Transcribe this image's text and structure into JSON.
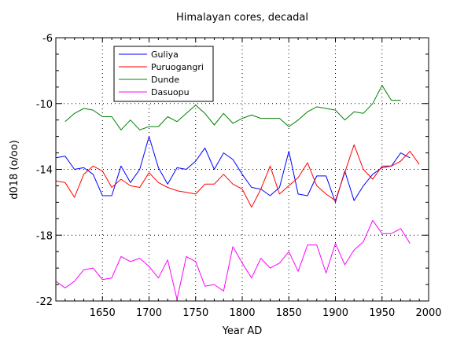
{
  "chart_data": {
    "type": "line",
    "title": "Himalayan cores, decadal",
    "xlabel": "Year AD",
    "ylabel": "d018 (o/oo)",
    "xlim": [
      1600,
      2000
    ],
    "ylim": [
      -22,
      -6
    ],
    "xticks": [
      1650,
      1700,
      1750,
      1800,
      1850,
      1900,
      1950,
      2000
    ],
    "yticks": [
      -22,
      -18,
      -14,
      -10,
      -6
    ],
    "grid": true,
    "legend_position": "top-left",
    "series": [
      {
        "name": "Guliya",
        "color": "#0000ff",
        "x": [
          1600,
          1610,
          1620,
          1630,
          1640,
          1650,
          1660,
          1670,
          1680,
          1690,
          1700,
          1710,
          1720,
          1730,
          1740,
          1750,
          1760,
          1770,
          1780,
          1790,
          1800,
          1810,
          1820,
          1830,
          1840,
          1850,
          1860,
          1870,
          1880,
          1890,
          1900,
          1910,
          1920,
          1930,
          1940,
          1950,
          1960,
          1970,
          1980
        ],
        "y": [
          -13.3,
          -13.2,
          -14.0,
          -13.9,
          -14.3,
          -15.6,
          -15.6,
          -13.8,
          -14.8,
          -14.0,
          -12.0,
          -13.9,
          -14.9,
          -13.9,
          -14.0,
          -13.5,
          -12.7,
          -14.0,
          -13.0,
          -13.4,
          -14.3,
          -15.1,
          -15.2,
          -15.6,
          -15.1,
          -12.9,
          -15.5,
          -15.6,
          -14.4,
          -14.4,
          -16.0,
          -14.1,
          -15.9,
          -15.0,
          -14.3,
          -13.9,
          -13.8,
          -13.0,
          -13.3
        ]
      },
      {
        "name": "Puruogangri",
        "color": "#ff0000",
        "x": [
          1600,
          1610,
          1620,
          1630,
          1640,
          1650,
          1660,
          1670,
          1680,
          1690,
          1700,
          1710,
          1720,
          1730,
          1740,
          1750,
          1760,
          1770,
          1780,
          1790,
          1800,
          1810,
          1820,
          1830,
          1840,
          1850,
          1860,
          1870,
          1880,
          1890,
          1900,
          1910,
          1920,
          1930,
          1940,
          1950,
          1960,
          1970,
          1980,
          1990
        ],
        "y": [
          -14.7,
          -14.8,
          -15.7,
          -14.3,
          -13.8,
          -14.1,
          -15.1,
          -14.6,
          -15.0,
          -15.1,
          -14.2,
          -14.8,
          -15.1,
          -15.3,
          -15.4,
          -15.5,
          -14.9,
          -14.9,
          -14.3,
          -14.9,
          -15.2,
          -16.3,
          -15.2,
          -13.8,
          -15.5,
          -15.0,
          -14.5,
          -13.6,
          -15.0,
          -15.5,
          -15.9,
          -14.2,
          -12.5,
          -14.0,
          -14.6,
          -13.8,
          -13.8,
          -13.5,
          -12.9,
          -13.7
        ]
      },
      {
        "name": "Dunde",
        "color": "#008000",
        "x": [
          1610,
          1620,
          1630,
          1640,
          1650,
          1660,
          1670,
          1680,
          1690,
          1700,
          1710,
          1720,
          1730,
          1740,
          1750,
          1760,
          1770,
          1780,
          1790,
          1800,
          1810,
          1820,
          1830,
          1840,
          1850,
          1860,
          1870,
          1880,
          1890,
          1900,
          1910,
          1920,
          1930,
          1940,
          1950,
          1960,
          1970
        ],
        "y": [
          -11.1,
          -10.6,
          -10.3,
          -10.4,
          -10.8,
          -10.8,
          -11.6,
          -11.0,
          -11.6,
          -11.4,
          -11.4,
          -10.8,
          -11.1,
          -10.6,
          -10.1,
          -10.6,
          -11.3,
          -10.6,
          -11.2,
          -10.9,
          -10.7,
          -10.9,
          -10.9,
          -10.9,
          -11.4,
          -11.0,
          -10.5,
          -10.2,
          -10.3,
          -10.4,
          -11.0,
          -10.5,
          -10.6,
          -10.0,
          -8.9,
          -9.8,
          -9.8
        ]
      },
      {
        "name": "Dasuopu",
        "color": "#ff00ff",
        "x": [
          1600,
          1610,
          1620,
          1630,
          1640,
          1650,
          1660,
          1670,
          1680,
          1690,
          1700,
          1710,
          1720,
          1730,
          1740,
          1750,
          1760,
          1770,
          1780,
          1790,
          1800,
          1810,
          1820,
          1830,
          1840,
          1850,
          1860,
          1870,
          1880,
          1890,
          1900,
          1910,
          1920,
          1930,
          1940,
          1950,
          1960,
          1970,
          1980
        ],
        "y": [
          -20.8,
          -21.2,
          -20.8,
          -20.1,
          -20.0,
          -20.7,
          -20.6,
          -19.3,
          -19.6,
          -19.4,
          -19.9,
          -20.6,
          -19.5,
          -21.9,
          -19.3,
          -19.6,
          -21.1,
          -21.0,
          -21.4,
          -18.7,
          -19.7,
          -20.6,
          -19.4,
          -20.0,
          -19.7,
          -19.0,
          -20.2,
          -18.6,
          -18.6,
          -20.3,
          -18.5,
          -19.8,
          -18.9,
          -18.4,
          -17.1,
          -17.9,
          -17.9,
          -17.6,
          -18.5
        ]
      }
    ]
  }
}
